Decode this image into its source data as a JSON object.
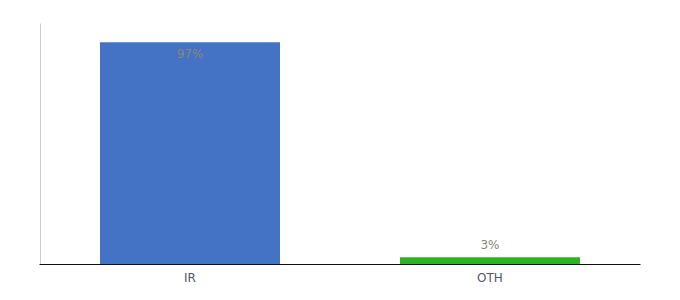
{
  "chart_data": {
    "type": "bar",
    "categories": [
      "IR",
      "OTH"
    ],
    "values": [
      97,
      3
    ],
    "value_labels": [
      "97%",
      "3%"
    ],
    "colors": [
      "#4472c4",
      "#2db224"
    ],
    "ylim": [
      0,
      105
    ],
    "data_labels": true,
    "tick_labels": "x",
    "grid": false
  }
}
